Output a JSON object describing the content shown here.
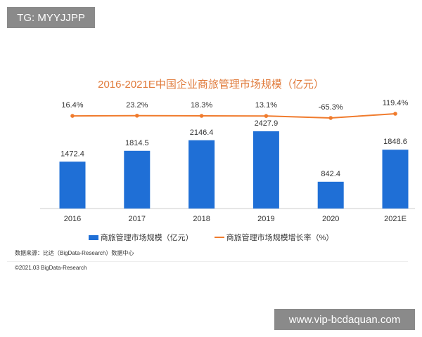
{
  "watermarks": {
    "top_left": "TG: MYYJJPP",
    "bottom_right": "www.vip-bcdaquan.com"
  },
  "chart_data": {
    "type": "bar+line",
    "title": "2016-2021E中国企业商旅管理市场规模（亿元）",
    "categories": [
      "2016",
      "2017",
      "2018",
      "2019",
      "2020",
      "2021E"
    ],
    "series": [
      {
        "name": "商旅管理市场规模（亿元）",
        "type": "bar",
        "color": "#1f6fd6",
        "values": [
          1472.4,
          1814.5,
          2146.4,
          2427.9,
          842.4,
          1848.6
        ],
        "labels": [
          "1472.4",
          "1814.5",
          "2146.4",
          "2427.9",
          "842.4",
          "1848.6"
        ]
      },
      {
        "name": "商旅管理市场规模增长率（%）",
        "type": "line",
        "color": "#f07b2d",
        "values": [
          16.4,
          23.2,
          18.3,
          13.1,
          -65.3,
          119.4
        ],
        "labels": [
          "16.4%",
          "23.2%",
          "18.3%",
          "13.1%",
          "-65.3%",
          "119.4%"
        ]
      }
    ],
    "legend": "bottom",
    "grid": false
  },
  "footer": {
    "source": "数据来源：比达（BigData-Research）数据中心",
    "copyright": "©2021.03 BigData-Research"
  }
}
